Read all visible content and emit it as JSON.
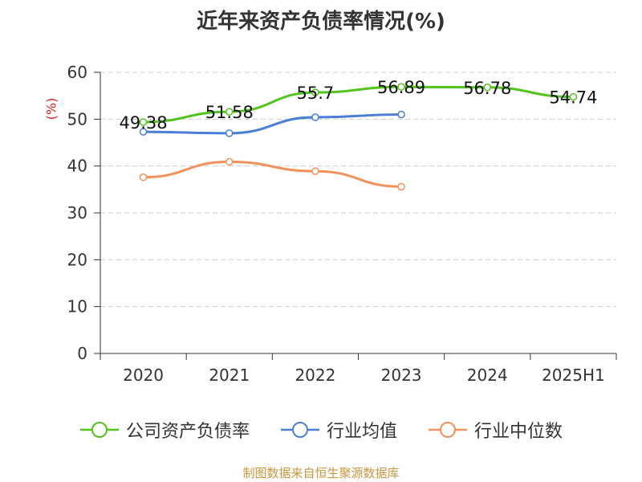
{
  "chart_data": {
    "type": "line",
    "title": "近年来资产负债率情况(%)",
    "y_unit": "(%)",
    "categories": [
      "2020",
      "2021",
      "2022",
      "2023",
      "2024",
      "2025H1"
    ],
    "ylim": [
      0,
      60
    ],
    "yticks": [
      0,
      10,
      20,
      30,
      40,
      50,
      60
    ],
    "grid": true,
    "legend_position": "bottom",
    "series": [
      {
        "name": "公司资产负债率",
        "color": "#52c41a",
        "values": [
          49.38,
          51.58,
          55.7,
          56.89,
          56.78,
          54.74
        ],
        "labels": [
          "49.38",
          "51.58",
          "55.7",
          "56.89",
          "56.78",
          "54.74"
        ]
      },
      {
        "name": "行业均值",
        "color": "#4a7fd8",
        "values": [
          47.3,
          47.0,
          50.4,
          51.0,
          null,
          null
        ]
      },
      {
        "name": "行业中位数",
        "color": "#f4905a",
        "values": [
          37.6,
          40.9,
          38.9,
          35.6,
          null,
          null
        ]
      }
    ]
  },
  "source": {
    "text": "制图数据来自恒生聚源数据库",
    "color": "#c8963c"
  },
  "colors": {
    "axis": "#333333",
    "grid": "#cccccc",
    "y_unit": "#e02020"
  }
}
